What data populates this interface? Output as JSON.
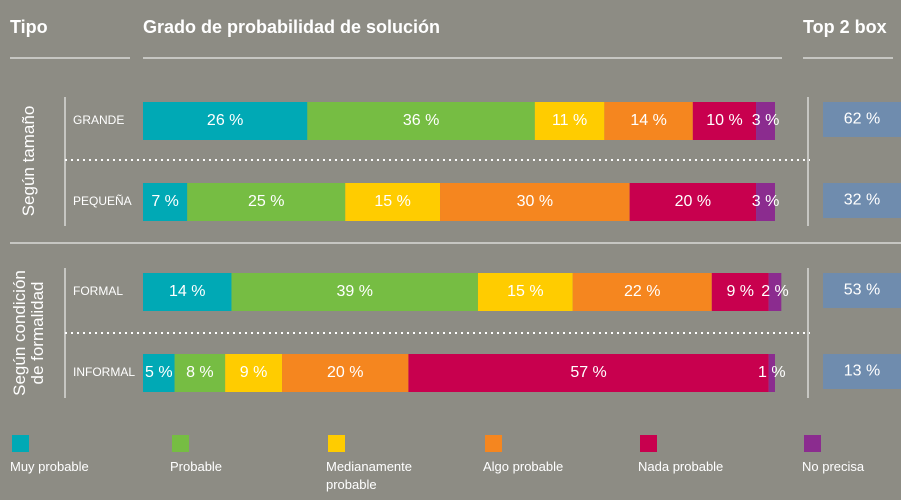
{
  "chart_data": {
    "type": "stacked_barh",
    "type_header": "Tipo",
    "title": "Grado de probabilidad de solución",
    "top2_header": "Top 2 box",
    "groups": [
      {
        "label": [
          "Según tamaño"
        ]
      },
      {
        "label": [
          "Según condición",
          "de formalidad"
        ]
      }
    ],
    "categories": [
      "GRANDE",
      "PEQUEÑA",
      "FORMAL",
      "INFORMAL"
    ],
    "xlim": [
      0,
      100
    ],
    "series": [
      {
        "name": "Muy probable",
        "color": "#00a9b5",
        "values": [
          26,
          7,
          14,
          5
        ],
        "value_labels": [
          "26 %",
          "7 %",
          "14 %",
          "5 %"
        ]
      },
      {
        "name": "Probable",
        "color": "#76bd43",
        "values": [
          36,
          25,
          39,
          8
        ],
        "value_labels": [
          "36 %",
          "25 %",
          "39 %",
          "8 %"
        ]
      },
      {
        "name": "Medianamente probable",
        "color": "#ffcc00",
        "values": [
          11,
          15,
          15,
          9
        ],
        "value_labels": [
          "11 %",
          "15 %",
          "15 %",
          "9 %"
        ]
      },
      {
        "name": "Algo probable",
        "color": "#f5861f",
        "values": [
          14,
          30,
          22,
          20
        ],
        "value_labels": [
          "14 %",
          "30 %",
          "22 %",
          "20 %"
        ]
      },
      {
        "name": "Nada probable",
        "color": "#c8004e",
        "values": [
          10,
          20,
          9,
          57
        ],
        "value_labels": [
          "10 %",
          "20 %",
          "9 %",
          "57 %"
        ]
      },
      {
        "name": "No precisa",
        "color": "#8b2c8f",
        "values": [
          3,
          3,
          2,
          1
        ],
        "value_labels": [
          "3 %",
          "3 %",
          "2 %",
          "1 %"
        ]
      }
    ],
    "top2": {
      "color": "#6f8cae",
      "values": [
        62,
        32,
        53,
        13
      ],
      "value_labels": [
        "62 %",
        "32 %",
        "53 %",
        "13 %"
      ]
    }
  }
}
